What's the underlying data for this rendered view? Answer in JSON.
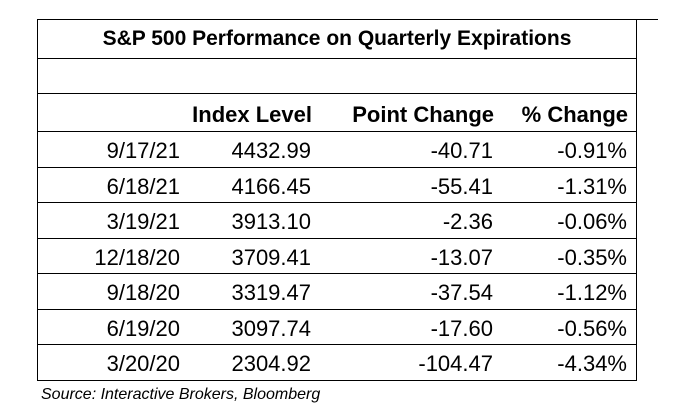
{
  "title": "S&P 500 Performance on Quarterly Expirations",
  "headers": {
    "index_level": "Index Level",
    "point_change": "Point Change",
    "pct_change": "% Change"
  },
  "rows": [
    {
      "date": "9/17/21",
      "index_level": "4432.99",
      "point_change": "-40.71",
      "pct_change": "-0.91%"
    },
    {
      "date": "6/18/21",
      "index_level": "4166.45",
      "point_change": "-55.41",
      "pct_change": "-1.31%"
    },
    {
      "date": "3/19/21",
      "index_level": "3913.10",
      "point_change": "-2.36",
      "pct_change": "-0.06%"
    },
    {
      "date": "12/18/20",
      "index_level": "3709.41",
      "point_change": "-13.07",
      "pct_change": "-0.35%"
    },
    {
      "date": "9/18/20",
      "index_level": "3319.47",
      "point_change": "-37.54",
      "pct_change": "-1.12%"
    },
    {
      "date": "6/19/20",
      "index_level": "3097.74",
      "point_change": "-17.60",
      "pct_change": "-0.56%"
    },
    {
      "date": "3/20/20",
      "index_level": "2304.92",
      "point_change": "-104.47",
      "pct_change": "-4.34%"
    }
  ],
  "source": "Source: Interactive Brokers, Bloomberg"
}
